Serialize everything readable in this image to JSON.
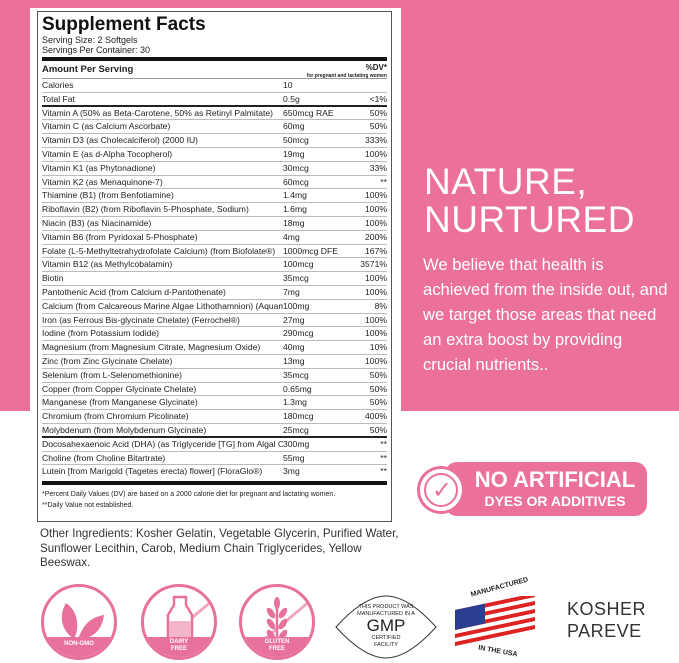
{
  "label": {
    "title": "Supplement Facts",
    "serving_size": "Serving Size: 2 Softgels",
    "servings_per_container": "Servings Per Container: 30",
    "amount_header": "Amount Per Serving",
    "dv_header": "%DV*",
    "dv_sub": "for pregnant and lactating women",
    "rows": [
      {
        "name": "Calories",
        "amount": "10",
        "dv": ""
      },
      {
        "name": "Total Fat",
        "amount": "0.5g",
        "dv": "<1%"
      },
      {
        "name": "Vitamin A (50% as Beta-Carotene, 50% as Retinyl Palmitate)",
        "amount": "650mcg RAE",
        "dv": "50%"
      },
      {
        "name": "Vitamin C (as Calcium Ascorbate)",
        "amount": "60mg",
        "dv": "50%"
      },
      {
        "name": "Vitamin D3 (as Cholecalciferol) (2000 IU)",
        "amount": "50mcg",
        "dv": "333%"
      },
      {
        "name": "Vitamin E (as d-Alpha Tocopherol)",
        "amount": "19mg",
        "dv": "100%"
      },
      {
        "name": "Vitamin K1 (as Phytonadione)",
        "amount": "30mcg",
        "dv": "33%"
      },
      {
        "name": "Vitamin K2 (as Menaquinone-7)",
        "amount": "60mcg",
        "dv": "**"
      },
      {
        "name": "Thiamine (B1) (from Benfotiamine)",
        "amount": "1.4mg",
        "dv": "100%"
      },
      {
        "name": "Riboflavin (B2) (from Riboflavin 5-Phosphate, Sodium)",
        "amount": "1.6mg",
        "dv": "100%"
      },
      {
        "name": "Niacin (B3) (as Niacinamide)",
        "amount": "18mg",
        "dv": "100%"
      },
      {
        "name": "Vitamin B6 (from Pyridoxal 5-Phosphate)",
        "amount": "4mg",
        "dv": "200%"
      },
      {
        "name": "Folate (L-5-Methyltetrahydrofolate Calcium) (from Biofolate®)",
        "amount": "1000mcg DFE",
        "dv": "167%"
      },
      {
        "name": "Vitamin B12 (as Methylcobalamin)",
        "amount": "100mcg",
        "dv": "3571%"
      },
      {
        "name": "Biotin",
        "amount": "35mcg",
        "dv": "100%"
      },
      {
        "name": "Pantothenic Acid (from Calcium d-Pantothenate)",
        "amount": "7mg",
        "dv": "100%"
      },
      {
        "name": "Calcium (from Calcareous Marine Algae Lithothamnion) (Aquamin®)",
        "amount": "100mg",
        "dv": "8%"
      },
      {
        "name": "Iron (as Ferrous Bis-glycinate Chelate) (Ferrochel®)",
        "amount": "27mg",
        "dv": "100%"
      },
      {
        "name": "Iodine (from Potassium Iodide)",
        "amount": "290mcg",
        "dv": "100%"
      },
      {
        "name": "Magnesium (from Magnesium Citrate, Magnesium Oxide)",
        "amount": "40mg",
        "dv": "10%"
      },
      {
        "name": "Zinc (from Zinc Glycinate Chelate)",
        "amount": "13mg",
        "dv": "100%"
      },
      {
        "name": "Selenium (from L-Selenomethionine)",
        "amount": "35mcg",
        "dv": "50%"
      },
      {
        "name": "Copper (from Copper Glycinate Chelate)",
        "amount": "0.65mg",
        "dv": "50%"
      },
      {
        "name": "Manganese (from Manganese Glycinate)",
        "amount": "1.3mg",
        "dv": "50%"
      },
      {
        "name": "Chromium (from Chromium Picolinate)",
        "amount": "180mcg",
        "dv": "400%"
      },
      {
        "name": "Molybdenum (from Molybdenum Glycinate)",
        "amount": "25mcg",
        "dv": "50%"
      },
      {
        "name": "Docosahexaenoic Acid (DHA) (as Triglyceride [TG] from Algal Oil)",
        "amount": "300mg",
        "dv": "**"
      },
      {
        "name": "Choline (from Choline Bitartrate)",
        "amount": "55mg",
        "dv": "**"
      },
      {
        "name": "Lutein [from Marigold (Tagetes erecta) flower] (FloraGlo®)",
        "amount": "3mg",
        "dv": "**"
      }
    ],
    "footnote1": "*Percent Daily Values (DV) are based on a 2000 calorie diet for pregnant and lactating women.",
    "footnote2": "**Daily Value not established."
  },
  "other_ingredients": "Other Ingredients: Kosher Gelatin, Vegetable Glycerin, Purified Water, Sunflower Lecithin, Carob, Medium Chain Triglycerides, Yellow Beeswax.",
  "headline": [
    "NATURE,",
    "NURTURED"
  ],
  "paragraph": "We believe that health is achieved from the inside out, and we target those areas that need an extra boost by providing crucial nutrients..",
  "badge": {
    "line1": "NO ARTIFICIAL",
    "line2": "DYES OR ADDITIVES",
    "icon": "check-icon"
  },
  "icons": [
    {
      "label": "NON-GMO",
      "icon": "leaf-icon"
    },
    {
      "label": "DAIRY FREE",
      "icon": "milk-bottle-icon"
    },
    {
      "label": "GLUTEN FREE",
      "icon": "wheat-icon"
    }
  ],
  "gmp": {
    "line1": "THIS PRODUCT WAS",
    "line2": "MANUFACTURED IN A",
    "big": "GMP",
    "line3": "CERTIFIED",
    "line4": "FACILITY"
  },
  "usa": {
    "top": "MANUFACTURED",
    "bottom": "IN THE USA",
    "icon": "us-flag-icon"
  },
  "kosher": [
    "KOSHER",
    "PAREVE"
  ],
  "colors": {
    "pink": "#ec709c",
    "text": "#222222"
  }
}
